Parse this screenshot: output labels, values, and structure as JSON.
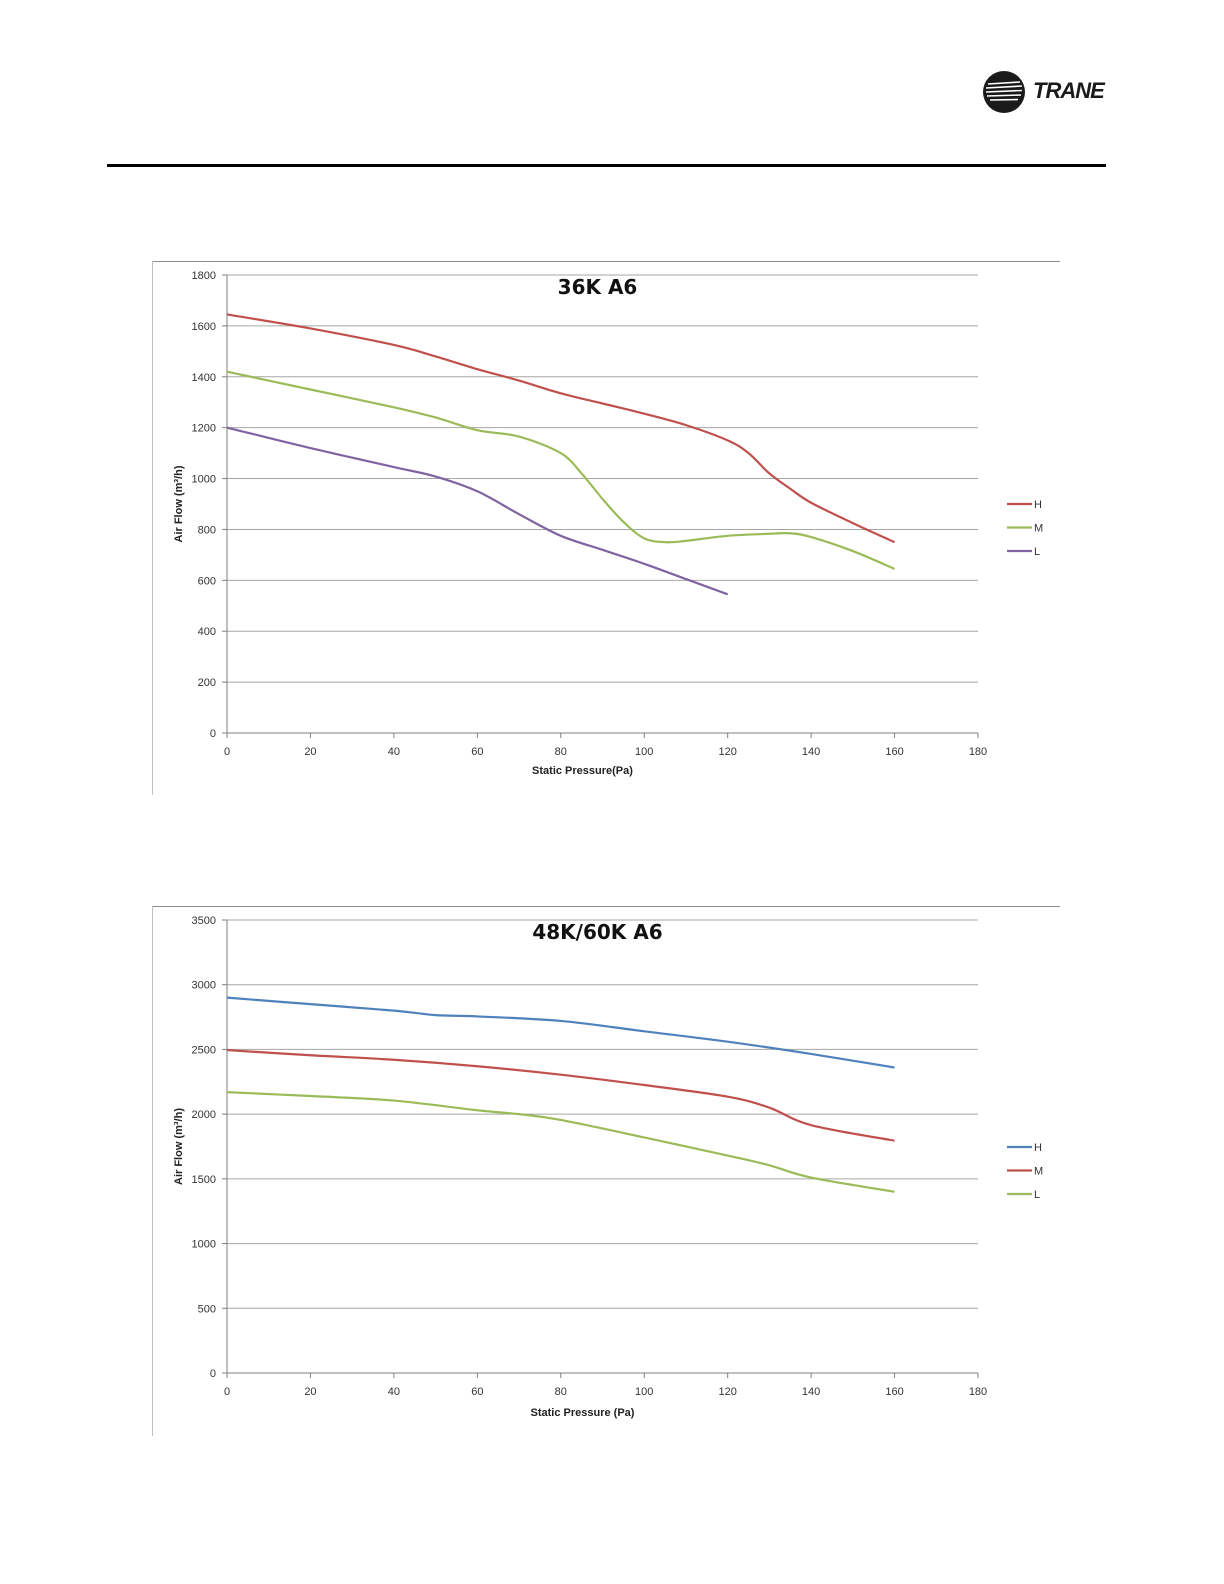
{
  "header": {
    "brand": "TRANE"
  },
  "colors": {
    "red": "#c0504d",
    "green": "#9bbb59",
    "purple": "#8064a2",
    "blue": "#4f81bd",
    "grid": "#a6a6a6",
    "axis": "#7f7f7f"
  },
  "chart_data": [
    {
      "type": "line",
      "title": "36K A6",
      "xlabel": "Static Pressure(Pa)",
      "ylabel": "Air Flow (m³/h)",
      "xlim": [
        0,
        180
      ],
      "ylim": [
        0,
        1800
      ],
      "xticks": [
        0,
        20,
        40,
        60,
        80,
        100,
        120,
        140,
        160,
        180
      ],
      "yticks": [
        0,
        200,
        400,
        600,
        800,
        1000,
        1200,
        1400,
        1600,
        1800
      ],
      "grid": "horizontal",
      "legend_position": "right",
      "series": [
        {
          "name": "H",
          "color": "#c0504d",
          "x": [
            0,
            20,
            40,
            50,
            60,
            70,
            80,
            90,
            100,
            110,
            120,
            125,
            130,
            135,
            140,
            150,
            160
          ],
          "y": [
            1645,
            1590,
            1525,
            1480,
            1430,
            1385,
            1335,
            1295,
            1255,
            1210,
            1150,
            1100,
            1020,
            960,
            905,
            825,
            750
          ]
        },
        {
          "name": "M",
          "color": "#9bbb59",
          "x": [
            0,
            20,
            40,
            50,
            60,
            70,
            80,
            85,
            90,
            95,
            100,
            105,
            110,
            120,
            130,
            135,
            140,
            150,
            160
          ],
          "y": [
            1420,
            1350,
            1280,
            1240,
            1190,
            1165,
            1100,
            1020,
            920,
            830,
            765,
            750,
            755,
            775,
            783,
            785,
            770,
            715,
            645
          ]
        },
        {
          "name": "L",
          "color": "#8064a2",
          "x": [
            0,
            20,
            40,
            50,
            60,
            70,
            80,
            90,
            100,
            110,
            120
          ],
          "y": [
            1200,
            1120,
            1045,
            1008,
            950,
            860,
            775,
            720,
            665,
            605,
            545
          ]
        }
      ]
    },
    {
      "type": "line",
      "title": "48K/60K A6",
      "xlabel": "Static Pressure (Pa)",
      "ylabel": "Air Flow (m³/h)",
      "xlim": [
        0,
        180
      ],
      "ylim": [
        0,
        3500
      ],
      "xticks": [
        0,
        20,
        40,
        60,
        80,
        100,
        120,
        140,
        160,
        180
      ],
      "yticks": [
        0,
        500,
        1000,
        1500,
        2000,
        2500,
        3000,
        3500
      ],
      "grid": "horizontal",
      "legend_position": "right",
      "series": [
        {
          "name": "H",
          "color": "#4f81bd",
          "x": [
            0,
            20,
            40,
            50,
            60,
            80,
            100,
            120,
            140,
            160
          ],
          "y": [
            2900,
            2850,
            2800,
            2765,
            2755,
            2720,
            2640,
            2560,
            2465,
            2360
          ]
        },
        {
          "name": "M",
          "color": "#c0504d",
          "x": [
            0,
            20,
            40,
            60,
            80,
            100,
            120,
            130,
            140,
            160
          ],
          "y": [
            2495,
            2455,
            2420,
            2370,
            2305,
            2225,
            2135,
            2050,
            1915,
            1795
          ]
        },
        {
          "name": "L",
          "color": "#9bbb59",
          "x": [
            0,
            20,
            40,
            60,
            70,
            80,
            100,
            120,
            130,
            140,
            160
          ],
          "y": [
            2170,
            2140,
            2105,
            2030,
            2000,
            1955,
            1820,
            1680,
            1605,
            1510,
            1400
          ]
        }
      ]
    }
  ]
}
